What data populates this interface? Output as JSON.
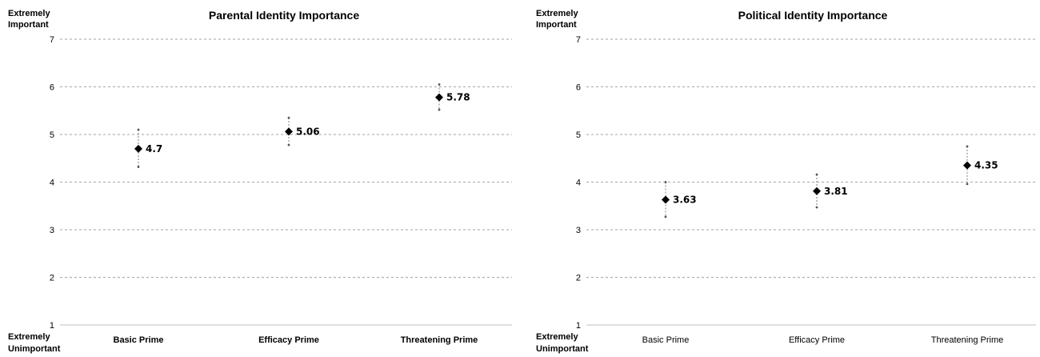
{
  "chart_data": [
    {
      "type": "scatter",
      "title": "Parental Identity Importance",
      "y_top_anchor": [
        "Extremely",
        "Important"
      ],
      "y_bottom_anchor": [
        "Extremely",
        "Unimportant"
      ],
      "ylim": [
        1,
        7
      ],
      "yticks": [
        1,
        2,
        3,
        4,
        5,
        6,
        7
      ],
      "grid": true,
      "categories": [
        "Basic Prime",
        "Efficacy Prime",
        "Threatening Prime"
      ],
      "category_labels_bold": true,
      "values": [
        4.7,
        5.06,
        5.78
      ],
      "value_labels": [
        "4.7",
        "5.06",
        "5.78"
      ],
      "error_low": [
        4.32,
        4.78,
        5.52
      ],
      "error_high": [
        5.1,
        5.35,
        6.05
      ],
      "marker_color": "#000000"
    },
    {
      "type": "scatter",
      "title": "Political Identity Importance",
      "y_top_anchor": [
        "Extremely",
        "Important"
      ],
      "y_bottom_anchor": [
        "Extremely",
        "Unimportant"
      ],
      "ylim": [
        1,
        7
      ],
      "yticks": [
        1,
        2,
        3,
        4,
        5,
        6,
        7
      ],
      "grid": true,
      "categories": [
        "Basic Prime",
        "Efficacy Prime",
        "Threatening Prime"
      ],
      "category_labels_bold": false,
      "values": [
        3.63,
        3.81,
        4.35
      ],
      "value_labels": [
        "3.63",
        "3.81",
        "4.35"
      ],
      "error_low": [
        3.27,
        3.47,
        3.96
      ],
      "error_high": [
        4.0,
        4.16,
        4.75
      ],
      "marker_color": "#000000"
    }
  ]
}
